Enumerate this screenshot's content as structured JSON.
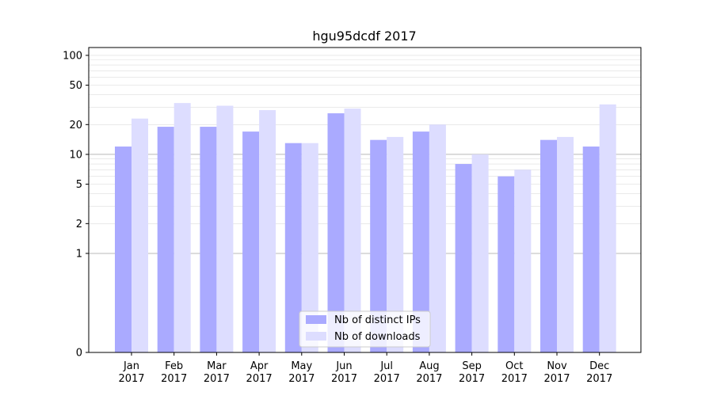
{
  "chart_data": {
    "type": "bar",
    "title": "hgu95dcdf 2017",
    "xlabel": "",
    "ylabel": "",
    "y_scale": "symlog",
    "ylim": [
      0,
      120
    ],
    "y_ticks": [
      0,
      1,
      2,
      5,
      10,
      20,
      50,
      100
    ],
    "y_tick_labels": [
      "0",
      "1",
      "2",
      "5",
      "10",
      "20",
      "50",
      "100"
    ],
    "categories": [
      "Jan\n2017",
      "Feb\n2017",
      "Mar\n2017",
      "Apr\n2017",
      "May\n2017",
      "Jun\n2017",
      "Jul\n2017",
      "Aug\n2017",
      "Sep\n2017",
      "Oct\n2017",
      "Nov\n2017",
      "Dec\n2017"
    ],
    "series": [
      {
        "name": "Nb of distinct IPs",
        "color": "#aaaaff",
        "values": [
          12,
          19,
          19,
          17,
          13,
          26,
          14,
          17,
          8,
          6,
          14,
          12
        ]
      },
      {
        "name": "Nb of downloads",
        "color": "#ddddff",
        "values": [
          23,
          33,
          31,
          28,
          13,
          29,
          15,
          20,
          10,
          7,
          15,
          32
        ]
      }
    ],
    "legend_position": "bottom-center",
    "grid": true,
    "major_gridlines": [
      1,
      10
    ],
    "minor_gridlines": [
      2,
      3,
      4,
      5,
      6,
      7,
      8,
      9,
      20,
      30,
      40,
      50,
      60,
      70,
      80,
      90,
      100
    ]
  }
}
